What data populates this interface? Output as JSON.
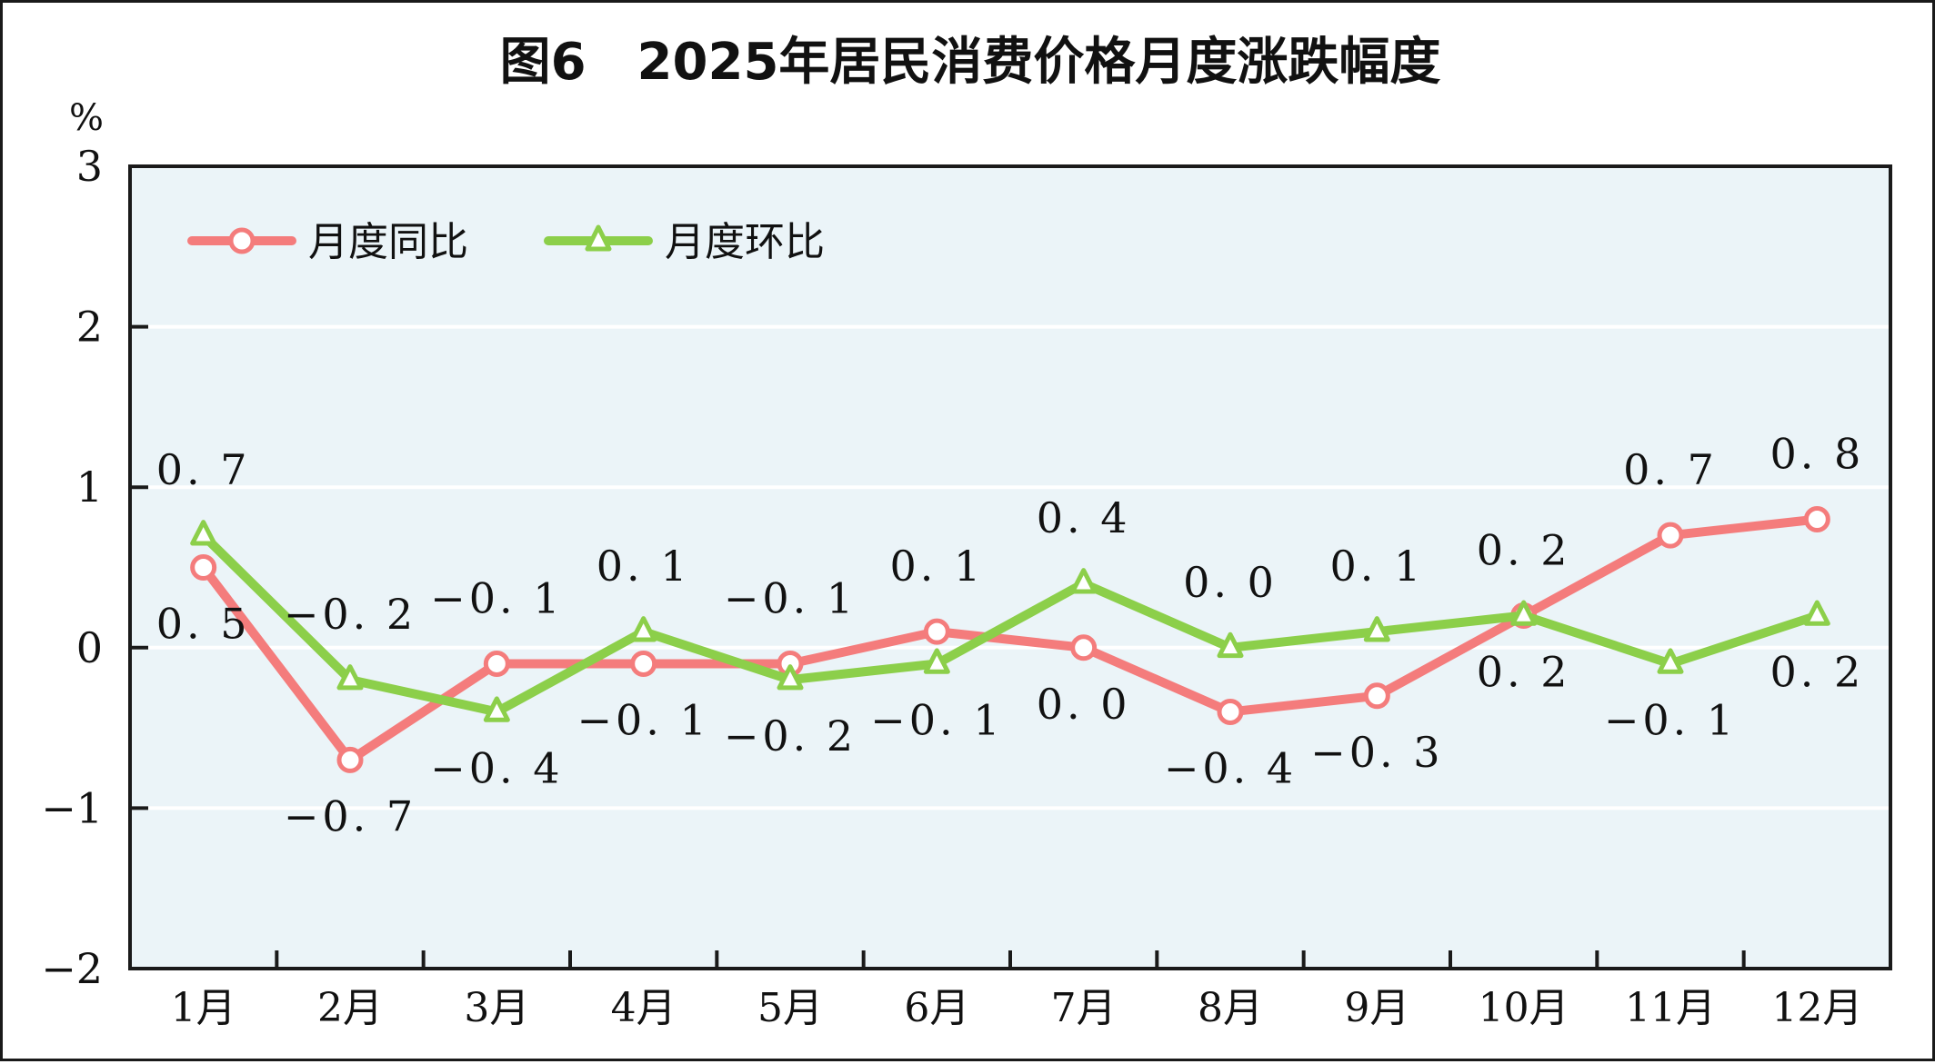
{
  "chart_data": {
    "type": "line",
    "title": "图6　2025年居民消费价格月度涨跌幅度",
    "y_unit": "%",
    "ylim": [
      -2,
      3
    ],
    "yticks": [
      "3",
      "2",
      "1",
      "0",
      "−1",
      "−2"
    ],
    "yticks_values": [
      3,
      2,
      1,
      0,
      -1,
      -2
    ],
    "categories": [
      "1月",
      "2月",
      "3月",
      "4月",
      "5月",
      "6月",
      "7月",
      "8月",
      "9月",
      "10月",
      "11月",
      "12月"
    ],
    "grid": true,
    "legend_position": "top-left",
    "series": [
      {
        "name": "月度同比",
        "color": "#f47c7c",
        "marker": "circle",
        "values": [
          0.5,
          -0.7,
          -0.1,
          -0.1,
          -0.1,
          0.1,
          0.0,
          -0.4,
          -0.3,
          0.2,
          0.7,
          0.8
        ],
        "labels": [
          "0. 5",
          "−0. 7",
          "−0. 1",
          "−0. 1",
          "−0. 1",
          "0. 1",
          "0. 0",
          "−0. 4",
          "−0. 3",
          "0. 2",
          "0. 7",
          "0. 8"
        ],
        "label_positions": [
          "below",
          "below",
          "above",
          "below",
          "above",
          "above",
          "below",
          "below",
          "below",
          "below",
          "above",
          "above"
        ]
      },
      {
        "name": "月度环比",
        "color": "#8ccf4a",
        "marker": "triangle",
        "values": [
          0.7,
          -0.2,
          -0.4,
          0.1,
          -0.2,
          -0.1,
          0.4,
          0.0,
          0.1,
          0.2,
          -0.1,
          0.2
        ],
        "labels": [
          "0. 7",
          "−0. 2",
          "−0. 4",
          "0. 1",
          "−0. 2",
          "−0. 1",
          "0. 4",
          "0. 0",
          "0. 1",
          "0. 2",
          "−0. 1",
          "0. 2"
        ],
        "label_positions": [
          "above",
          "above",
          "below",
          "above",
          "below",
          "below",
          "above",
          "above",
          "above",
          "above",
          "below",
          "below"
        ]
      }
    ]
  }
}
